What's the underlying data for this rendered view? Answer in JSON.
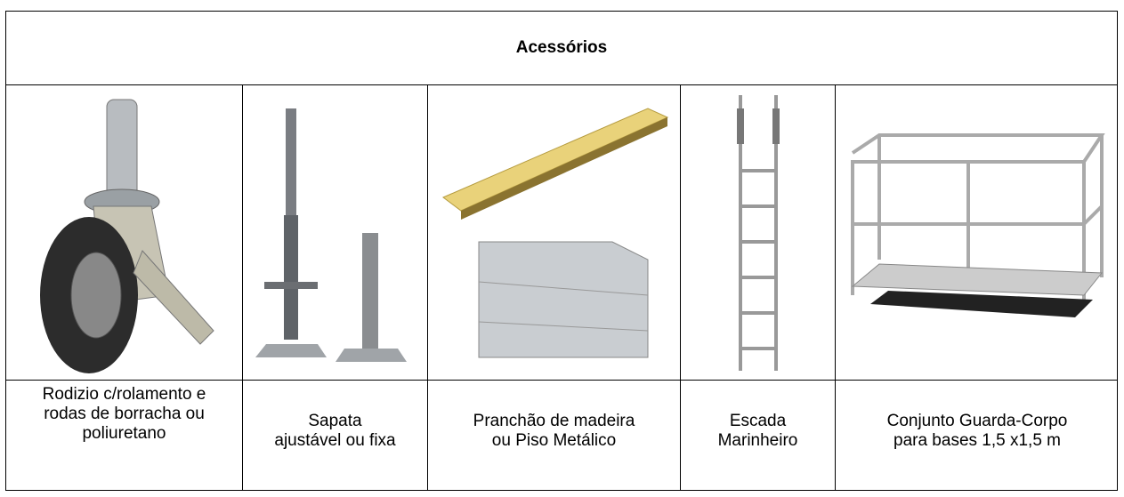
{
  "table": {
    "header": "Acessórios",
    "columns": [
      {
        "caption": "Rodizio c/rolamento e rodas de borracha ou poliuretano"
      },
      {
        "caption": "Sapata ajustável ou fixa"
      },
      {
        "caption": "Pranchão de madeira ou Piso Metálico"
      },
      {
        "caption": "Escada Marinheiro"
      },
      {
        "caption": "Conjunto Guarda-Corpo para bases 1,5 x1,5 m"
      }
    ]
  }
}
